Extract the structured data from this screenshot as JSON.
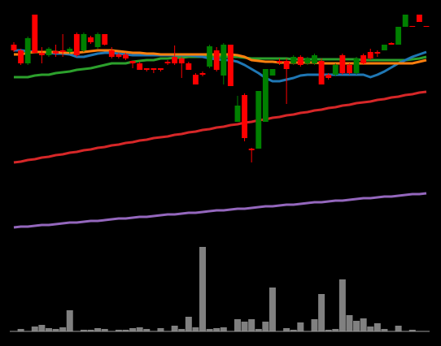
{
  "chart_data": {
    "type": "candlestick",
    "ylim": [
      0,
      426
    ],
    "up_color": "#ff0000",
    "down_color": "#008000",
    "open": [
      364,
      348,
      379,
      361,
      358,
      366,
      360,
      362,
      366,
      358,
      384,
      374,
      384,
      371,
      356,
      356,
      354,
      348,
      340,
      340,
      340,
      340,
      348,
      348,
      348,
      340,
      322,
      334,
      369,
      340,
      371,
      320,
      296,
      256,
      241,
      314,
      341,
      341,
      349,
      341,
      356,
      346,
      354,
      358,
      322,
      330,
      346,
      336,
      336,
      354,
      348,
      354,
      360,
      371,
      371,
      393,
      408,
      393,
      399,
      393
    ],
    "high": [
      374,
      366,
      381,
      408,
      368,
      368,
      371,
      384,
      368,
      386,
      386,
      382,
      386,
      384,
      368,
      361,
      361,
      351,
      350,
      342,
      342,
      342,
      352,
      370,
      356,
      350,
      336,
      338,
      371,
      368,
      373,
      371,
      308,
      311,
      244,
      314,
      341,
      341,
      354,
      354,
      358,
      358,
      356,
      360,
      354,
      336,
      348,
      360,
      348,
      356,
      360,
      366,
      364,
      371,
      374,
      393,
      408,
      394,
      408,
      394
    ],
    "low": [
      362,
      346,
      346,
      360,
      348,
      356,
      356,
      356,
      360,
      356,
      362,
      372,
      366,
      370,
      354,
      354,
      352,
      342,
      340,
      338,
      336,
      338,
      346,
      346,
      330,
      340,
      322,
      332,
      342,
      338,
      322,
      320,
      276,
      252,
      226,
      243,
      276,
      333,
      346,
      298,
      346,
      344,
      346,
      346,
      322,
      328,
      332,
      334,
      334,
      334,
      346,
      352,
      356,
      364,
      371,
      371,
      393,
      393,
      399,
      393
    ],
    "close": [
      371,
      364,
      348,
      408,
      361,
      358,
      363,
      364,
      362,
      384,
      364,
      380,
      368,
      384,
      364,
      359,
      359,
      351,
      348,
      342,
      342,
      342,
      350,
      356,
      354,
      348,
      334,
      336,
      344,
      364,
      333,
      371,
      276,
      309,
      243,
      243,
      276,
      333,
      351,
      351,
      348,
      356,
      348,
      348,
      351,
      334,
      334,
      358,
      346,
      336,
      358,
      362,
      362,
      364,
      373,
      371,
      393,
      394,
      408,
      394
    ],
    "lines": [
      {
        "color": "#d62728",
        "values": [
          226,
          227,
          229,
          230,
          232,
          233,
          235,
          236,
          238,
          239,
          241,
          242,
          244,
          245,
          247,
          248,
          250,
          251,
          253,
          254,
          256,
          257,
          258,
          260,
          261,
          263,
          264,
          266,
          267,
          269,
          270,
          272,
          273,
          275,
          276,
          278,
          279,
          281,
          282,
          284,
          285,
          287,
          288,
          290,
          291,
          293,
          294,
          296,
          297,
          299,
          300,
          301,
          303,
          304,
          306,
          307,
          309,
          310,
          312,
          313
        ]
      },
      {
        "color": "#9467bd",
        "values": [
          146,
          147,
          147,
          148,
          149,
          149,
          150,
          151,
          152,
          152,
          153,
          154,
          154,
          155,
          156,
          157,
          157,
          158,
          159,
          159,
          160,
          161,
          162,
          162,
          163,
          164,
          164,
          165,
          166,
          167,
          167,
          168,
          169,
          169,
          170,
          171,
          172,
          172,
          173,
          174,
          174,
          175,
          176,
          177,
          177,
          178,
          179,
          179,
          180,
          181,
          182,
          182,
          183,
          184,
          184,
          185,
          186,
          187,
          187,
          188
        ]
      },
      {
        "color": "#2ca02c",
        "values": [
          331,
          331,
          331,
          333,
          334,
          334,
          336,
          337,
          338,
          340,
          341,
          342,
          344,
          346,
          348,
          348,
          348,
          350,
          351,
          352,
          352,
          354,
          354,
          355,
          355,
          356,
          356,
          356,
          356,
          356,
          356,
          356,
          356,
          355,
          354,
          354,
          354,
          354,
          354,
          354,
          353,
          353,
          353,
          353,
          353,
          353,
          353,
          353,
          353,
          353,
          352,
          352,
          352,
          352,
          352,
          352,
          352,
          353,
          354,
          356
        ]
      },
      {
        "color": "#1f77b4",
        "values": [
          364,
          364,
          363,
          362,
          362,
          361,
          360,
          360,
          359,
          356,
          356,
          358,
          360,
          361,
          361,
          360,
          359,
          358,
          358,
          358,
          358,
          358,
          358,
          358,
          358,
          358,
          357,
          356,
          354,
          353,
          352,
          352,
          350,
          346,
          341,
          336,
          330,
          326,
          326,
          328,
          330,
          333,
          334,
          334,
          334,
          334,
          334,
          334,
          334,
          334,
          334,
          331,
          334,
          338,
          343,
          348,
          352,
          356,
          359,
          362
        ]
      },
      {
        "color": "#ff7f0e",
        "values": [
          359,
          359,
          361,
          362,
          362,
          362,
          362,
          361,
          361,
          361,
          362,
          363,
          364,
          364,
          364,
          363,
          362,
          361,
          361,
          360,
          360,
          359,
          359,
          359,
          359,
          359,
          359,
          359,
          359,
          359,
          359,
          359,
          358,
          356,
          352,
          351,
          350,
          350,
          349,
          349,
          349,
          349,
          349,
          349,
          348,
          348,
          348,
          348,
          348,
          348,
          348,
          348,
          348,
          348,
          348,
          348,
          348,
          348,
          350,
          352
        ]
      }
    ],
    "volume": {
      "color": "#808080",
      "ylim": [
        0,
        110
      ],
      "values": [
        0,
        3,
        0,
        6,
        8,
        4,
        3,
        5,
        26,
        0,
        2,
        2,
        4,
        3,
        0,
        2,
        2,
        4,
        5,
        3,
        0,
        4,
        0,
        7,
        3,
        18,
        5,
        104,
        3,
        4,
        5,
        0,
        15,
        12,
        15,
        3,
        12,
        54,
        0,
        4,
        2,
        11,
        0,
        15,
        46,
        2,
        3,
        64,
        20,
        13,
        16,
        6,
        10,
        3,
        0,
        7,
        0,
        2,
        0,
        0
      ]
    }
  }
}
